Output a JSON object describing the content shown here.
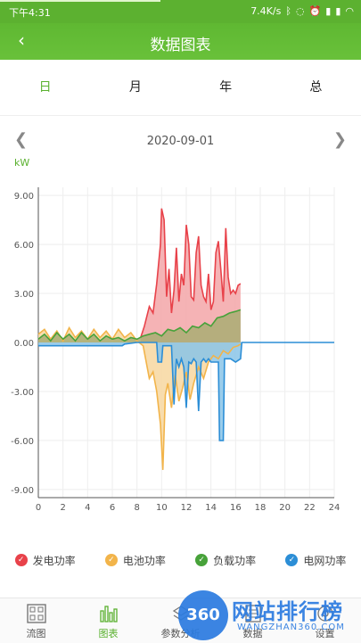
{
  "status_bar": {
    "time": "下午4:31",
    "network_speed": "7.4K/s",
    "icons": [
      "bluetooth-icon",
      "mute-icon",
      "alarm-icon",
      "signal-icon",
      "signal-icon",
      "wifi-icon"
    ]
  },
  "header": {
    "title": "数据图表",
    "back_icon": "chevron-left-icon"
  },
  "tabs": [
    {
      "label": "日",
      "active": true
    },
    {
      "label": "月",
      "active": false
    },
    {
      "label": "年",
      "active": false
    },
    {
      "label": "总",
      "active": false
    }
  ],
  "date_nav": {
    "date": "2020-09-01",
    "prev_icon": "chevron-left-icon",
    "next_icon": "chevron-right-icon"
  },
  "chart_data": {
    "type": "area",
    "unit_label": "kW",
    "x_ticks": [
      "0",
      "2",
      "4",
      "6",
      "8",
      "10",
      "12",
      "14",
      "16",
      "18",
      "20",
      "22",
      "24"
    ],
    "y_ticks": [
      "9.00",
      "6.00",
      "3.00",
      "0.00",
      "-3.00",
      "-6.00",
      "-9.00"
    ],
    "xlim": [
      0,
      24
    ],
    "ylim": [
      -9.5,
      9.5
    ],
    "grid": true,
    "legend_position": "bottom",
    "series": [
      {
        "name": "发电功率",
        "color": "#e8424a",
        "fill": "#f3a6a8",
        "x": [
          8.3,
          8.6,
          9.0,
          9.3,
          9.6,
          9.9,
          10.0,
          10.2,
          10.4,
          10.6,
          10.8,
          11.0,
          11.2,
          11.4,
          11.6,
          11.8,
          12.0,
          12.2,
          12.4,
          12.6,
          12.8,
          13.0,
          13.2,
          13.4,
          13.6,
          13.8,
          14.0,
          14.2,
          14.4,
          14.6,
          14.8,
          15.0,
          15.2,
          15.4,
          15.6,
          15.8,
          16.0,
          16.2,
          16.4
        ],
        "y": [
          0.3,
          1.0,
          2.2,
          1.8,
          3.6,
          6.0,
          8.2,
          7.5,
          2.8,
          4.5,
          1.8,
          3.2,
          5.8,
          2.5,
          4.2,
          3.5,
          7.2,
          6.0,
          2.8,
          2.6,
          5.5,
          6.5,
          3.5,
          2.8,
          2.5,
          4.2,
          2.0,
          2.5,
          5.5,
          6.2,
          4.5,
          2.5,
          7.0,
          4.0,
          3.0,
          3.2,
          3.0,
          3.5,
          3.6
        ]
      },
      {
        "name": "电池功率",
        "color": "#f2b44a",
        "fill": "#f7d7a0",
        "x": [
          0.0,
          0.5,
          1.0,
          1.5,
          2.0,
          2.5,
          3.0,
          3.5,
          4.0,
          4.5,
          5.0,
          5.5,
          6.0,
          6.5,
          7.0,
          7.5,
          8.0,
          8.5,
          9.0,
          9.3,
          9.6,
          9.9,
          10.1,
          10.3,
          10.5,
          10.8,
          11.1,
          11.4,
          11.7,
          12.0,
          12.3,
          12.6,
          13.0,
          13.4,
          13.8,
          14.2,
          14.6,
          15.0,
          15.4,
          15.8,
          16.2,
          16.4
        ],
        "y": [
          0.5,
          0.8,
          0.2,
          0.7,
          0.1,
          0.9,
          0.3,
          0.7,
          0.2,
          0.8,
          0.3,
          0.7,
          0.2,
          0.8,
          0.3,
          0.6,
          0.1,
          -0.2,
          -2.2,
          -1.8,
          -3.0,
          -5.0,
          -7.8,
          -3.2,
          -2.5,
          -4.0,
          -2.0,
          -3.6,
          -2.8,
          -1.8,
          -3.5,
          -2.5,
          -1.5,
          -2.2,
          -1.2,
          -0.8,
          -1.0,
          -0.5,
          -0.7,
          -0.3,
          -0.2,
          -0.1
        ]
      },
      {
        "name": "负载功率",
        "color": "#47a23a",
        "fill": "#a9ad73",
        "x": [
          0.0,
          0.5,
          1.0,
          1.5,
          2.0,
          2.5,
          3.0,
          3.5,
          4.0,
          4.5,
          5.0,
          5.5,
          6.0,
          6.5,
          7.0,
          7.5,
          8.0,
          8.5,
          9.0,
          9.5,
          10.0,
          10.5,
          11.0,
          11.5,
          12.0,
          12.5,
          13.0,
          13.5,
          14.0,
          14.5,
          15.0,
          15.5,
          16.0,
          16.4
        ],
        "y": [
          0.2,
          0.5,
          0.1,
          0.6,
          0.2,
          0.5,
          0.1,
          0.6,
          0.2,
          0.5,
          0.1,
          0.4,
          0.2,
          0.3,
          0.1,
          0.3,
          0.2,
          0.4,
          0.5,
          0.6,
          0.4,
          0.8,
          0.7,
          0.9,
          0.6,
          1.0,
          0.9,
          1.2,
          1.0,
          1.5,
          1.6,
          1.8,
          1.9,
          2.0
        ]
      },
      {
        "name": "电网功率",
        "color": "#2c8ed6",
        "fill": "#8ac4e8",
        "x": [
          0.0,
          6.8,
          7.0,
          8.0,
          9.0,
          9.6,
          9.7,
          10.0,
          10.1,
          10.8,
          11.0,
          11.2,
          11.4,
          11.6,
          11.8,
          12.0,
          12.2,
          12.4,
          12.6,
          12.8,
          13.0,
          13.2,
          13.4,
          13.6,
          13.8,
          14.0,
          14.6,
          14.7,
          15.0,
          15.1,
          15.6,
          16.0,
          16.4,
          16.5,
          24.0
        ],
        "y": [
          -0.2,
          -0.2,
          -0.1,
          0.0,
          0.0,
          0.0,
          -1.2,
          -1.2,
          -0.2,
          -0.2,
          -3.8,
          -1.0,
          -1.5,
          -1.0,
          -1.5,
          -4.0,
          -1.2,
          -1.3,
          -1.0,
          -1.2,
          -4.2,
          -1.2,
          -1.0,
          -1.2,
          -1.0,
          -1.2,
          -1.2,
          -6.0,
          -6.0,
          -1.0,
          -1.0,
          -1.2,
          -1.0,
          0.0,
          0.0
        ]
      }
    ]
  },
  "bottom_nav": [
    {
      "label": "流图",
      "icon": "flow-diagram-icon",
      "active": false
    },
    {
      "label": "图表",
      "icon": "bar-chart-icon",
      "active": true
    },
    {
      "label": "参数分析",
      "icon": "parameters-icon",
      "active": false
    },
    {
      "label": "数据",
      "icon": "data-icon",
      "active": false
    },
    {
      "label": "设置",
      "icon": "settings-icon",
      "active": false
    }
  ],
  "watermark": {
    "badge": "360",
    "title": "网站排行榜",
    "url": "WANGZHAN360.COM"
  }
}
